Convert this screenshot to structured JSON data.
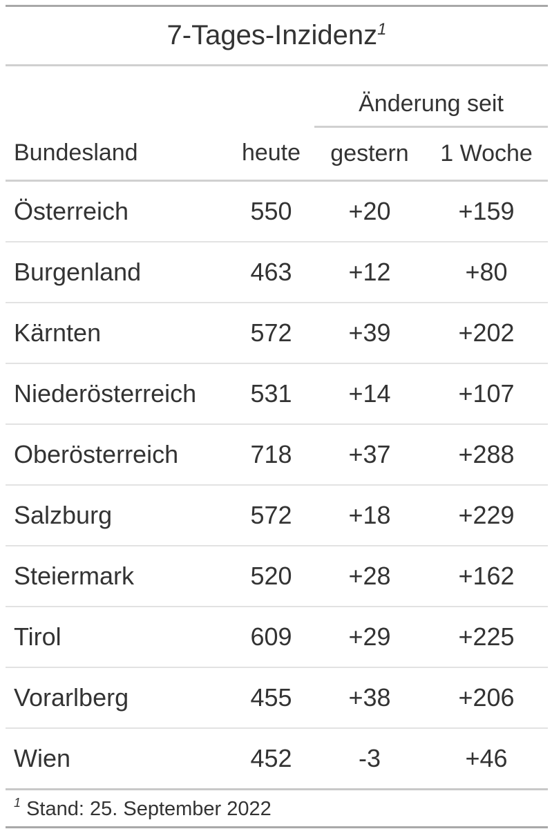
{
  "title": "7-Tages-Inzidenz",
  "title_footnote_mark": "1",
  "spanner": "Änderung seit",
  "columns": [
    "Bundesland",
    "heute",
    "gestern",
    "1 Woche"
  ],
  "rows": [
    [
      "Österreich",
      "550",
      "+20",
      "+159"
    ],
    [
      "Burgenland",
      "463",
      "+12",
      "+80"
    ],
    [
      "Kärnten",
      "572",
      "+39",
      "+202"
    ],
    [
      "Niederösterreich",
      "531",
      "+14",
      "+107"
    ],
    [
      "Oberösterreich",
      "718",
      "+37",
      "+288"
    ],
    [
      "Salzburg",
      "572",
      "+18",
      "+229"
    ],
    [
      "Steiermark",
      "520",
      "+28",
      "+162"
    ],
    [
      "Tirol",
      "609",
      "+29",
      "+225"
    ],
    [
      "Vorarlberg",
      "455",
      "+38",
      "+206"
    ],
    [
      "Wien",
      "452",
      "-3",
      "+46"
    ]
  ],
  "footnote": {
    "mark": "1",
    "text": "Stand: 25. September 2022"
  }
}
